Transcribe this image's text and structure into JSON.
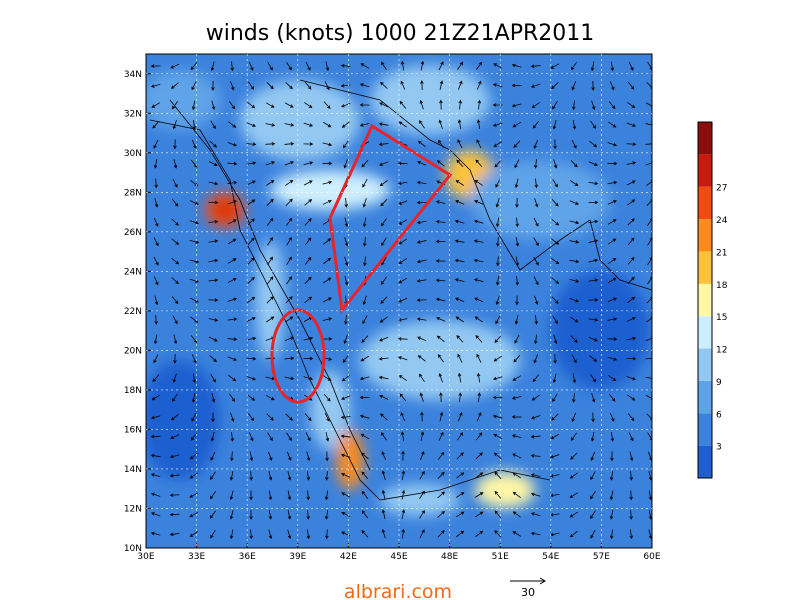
{
  "title": "winds (knots) 1000 21Z21APR2011",
  "lat_labels": [
    "10N",
    "12N",
    "14N",
    "16N",
    "18N",
    "20N",
    "22N",
    "24N",
    "26N",
    "28N",
    "30N",
    "32N",
    "34N"
  ],
  "lon_labels": [
    "30E",
    "33E",
    "36E",
    "39E",
    "42E",
    "45E",
    "48E",
    "51E",
    "54E",
    "57E",
    "60E"
  ],
  "colorbar": {
    "labels": [
      3,
      6,
      9,
      12,
      15,
      18,
      21,
      24,
      27
    ],
    "colors": [
      "#1f5fd0",
      "#3b82dd",
      "#5ea3e8",
      "#93c8f2",
      "#cdeefe",
      "#fff6a6",
      "#fcc23c",
      "#fb8b1d",
      "#ef4b13",
      "#c81b10",
      "#8b0d0d"
    ]
  },
  "watermark": "albrari.com",
  "reference_vector": "30"
}
